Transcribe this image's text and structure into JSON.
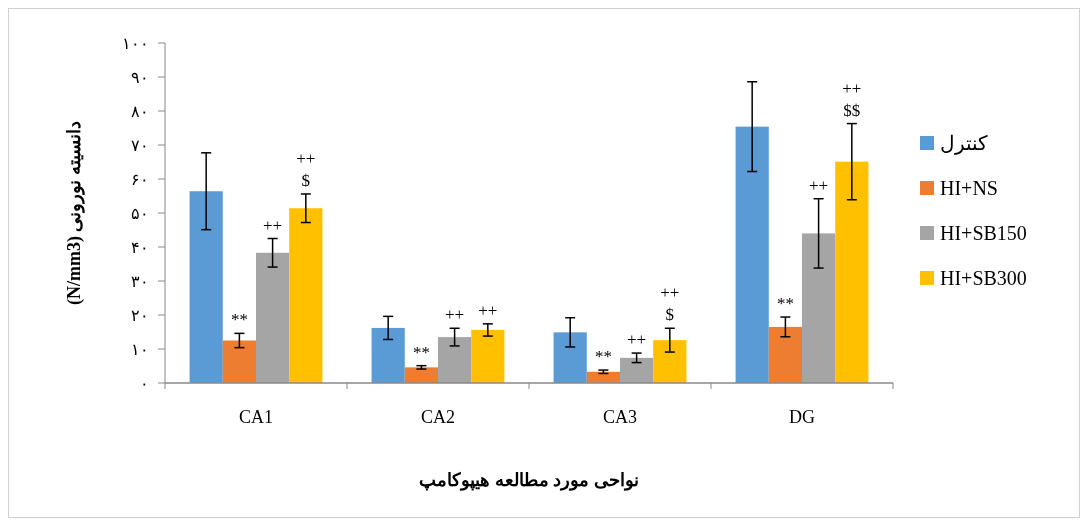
{
  "chart_data": {
    "type": "bar",
    "xlabel": "نواحی مورد مطالعه هیپوکامپ",
    "ylabel": "دانسیته نورونی (N/mm3)",
    "categories": [
      "CA1",
      "CA2",
      "CA3",
      "DG"
    ],
    "series": [
      {
        "name": "کنترل",
        "color": "#5b9bd5",
        "values": [
          56.4,
          16.2,
          14.9,
          75.4
        ],
        "errors": [
          11.3,
          3.4,
          4.3,
          13.2
        ]
      },
      {
        "name": "HI+NS",
        "color": "#ed7d31",
        "values": [
          12.5,
          4.6,
          3.3,
          16.5
        ],
        "errors": [
          2.1,
          0.5,
          0.5,
          2.9
        ],
        "value_labels": [
          "**",
          "**",
          "**",
          "**"
        ]
      },
      {
        "name": "HI+SB150",
        "color": "#a5a5a5",
        "values": [
          38.3,
          13.5,
          7.4,
          44.0
        ],
        "errors": [
          4.2,
          2.6,
          1.4,
          10.2
        ],
        "value_labels": [
          "++",
          "++",
          "++",
          "++"
        ]
      },
      {
        "name": "HI+SB300",
        "color": "#ffc000",
        "values": [
          51.4,
          15.6,
          12.6,
          65.1
        ],
        "errors": [
          4.2,
          1.8,
          3.5,
          11.2
        ],
        "value_labels": [
          "++\n$",
          "++",
          "++\n$",
          "++\n$$"
        ]
      }
    ],
    "ylim": [
      0,
      100
    ],
    "yticks": [
      {
        "value": 0,
        "label": "۰"
      },
      {
        "value": 10,
        "label": "۱۰"
      },
      {
        "value": 20,
        "label": "۲۰"
      },
      {
        "value": 30,
        "label": "۳۰"
      },
      {
        "value": 40,
        "label": "۴۰"
      },
      {
        "value": 50,
        "label": "۵۰"
      },
      {
        "value": 60,
        "label": "۶۰"
      },
      {
        "value": 70,
        "label": "۷۰"
      },
      {
        "value": 80,
        "label": "۸۰"
      },
      {
        "value": 90,
        "label": "۹۰"
      },
      {
        "value": 100,
        "label": "۱۰۰"
      }
    ],
    "grid": false,
    "legend": "right"
  }
}
